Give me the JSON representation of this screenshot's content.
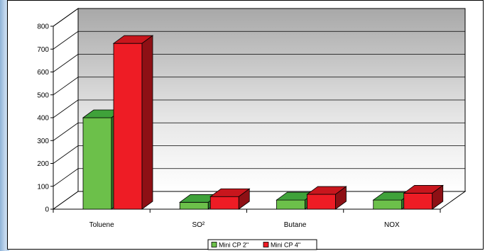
{
  "chart_data": {
    "type": "bar",
    "categories": [
      "Toluene",
      "SO²",
      "Butane",
      "NOX"
    ],
    "series": [
      {
        "name": "Mini CP 2\"",
        "values": [
          400,
          30,
          40,
          40
        ]
      },
      {
        "name": "Mini CP 4\"",
        "values": [
          725,
          55,
          65,
          70
        ]
      }
    ],
    "ylim": [
      0,
      800
    ],
    "yticks": [
      0,
      100,
      200,
      300,
      400,
      500,
      600,
      700,
      800
    ],
    "grid": true,
    "legend_position": "bottom",
    "colors": {
      "series": [
        "#6cc04a",
        "#ee1c25"
      ],
      "series_top": [
        "#3fa23a",
        "#c8161d"
      ],
      "series_side": [
        "#2f7a2c",
        "#8e1015"
      ]
    }
  }
}
